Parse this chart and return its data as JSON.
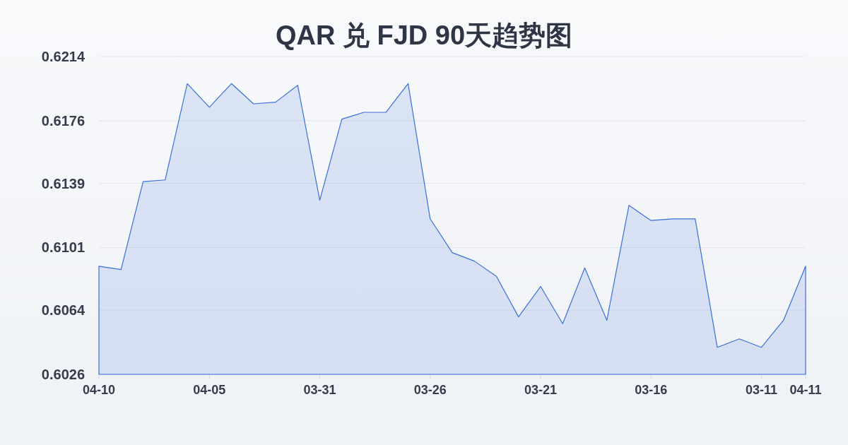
{
  "chart_data": {
    "type": "area",
    "title": "QAR 兑 FJD 90天趋势图",
    "categories": [
      "04-10",
      null,
      null,
      null,
      null,
      "04-05",
      null,
      null,
      null,
      null,
      "03-31",
      null,
      null,
      null,
      null,
      "03-26",
      null,
      null,
      null,
      null,
      "03-21",
      null,
      null,
      null,
      null,
      "03-16",
      null,
      null,
      null,
      null,
      "03-11",
      null,
      "04-11"
    ],
    "values": [
      0.609,
      0.6088,
      0.614,
      0.6141,
      0.6198,
      0.6184,
      0.6198,
      0.6186,
      0.6187,
      0.6197,
      0.6129,
      0.6177,
      0.6181,
      0.6181,
      0.6198,
      0.6118,
      0.6098,
      0.6093,
      0.6084,
      0.606,
      0.6078,
      0.6056,
      0.6089,
      0.6058,
      0.6126,
      0.6117,
      0.6118,
      0.6118,
      0.6042,
      0.6047,
      0.6042,
      0.6058,
      0.609
    ],
    "color": "#3a6fd8",
    "ylim": [
      0.6026,
      0.6214
    ],
    "yticks": [
      0.6026,
      0.6064,
      0.6101,
      0.6139,
      0.6176,
      0.6214
    ],
    "grid": "y"
  }
}
